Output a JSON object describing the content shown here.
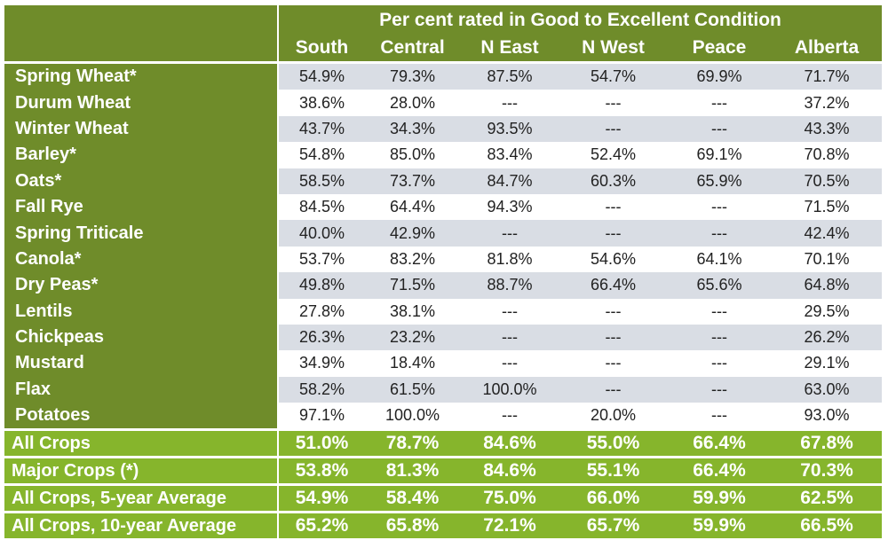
{
  "table": {
    "title": "Per cent rated in Good to Excellent Condition",
    "columns": [
      "South",
      "Central",
      "N East",
      "N West",
      "Peace",
      "Alberta"
    ],
    "rows": [
      {
        "crop": "Spring Wheat*",
        "values": [
          "54.9%",
          "79.3%",
          "87.5%",
          "54.7%",
          "69.9%",
          "71.7%"
        ]
      },
      {
        "crop": "Durum Wheat",
        "values": [
          "38.6%",
          "28.0%",
          "---",
          "---",
          "---",
          "37.2%"
        ]
      },
      {
        "crop": "Winter Wheat",
        "values": [
          "43.7%",
          "34.3%",
          "93.5%",
          "---",
          "---",
          "43.3%"
        ]
      },
      {
        "crop": "Barley*",
        "values": [
          "54.8%",
          "85.0%",
          "83.4%",
          "52.4%",
          "69.1%",
          "70.8%"
        ]
      },
      {
        "crop": "Oats*",
        "values": [
          "58.5%",
          "73.7%",
          "84.7%",
          "60.3%",
          "65.9%",
          "70.5%"
        ]
      },
      {
        "crop": "Fall Rye",
        "values": [
          "84.5%",
          "64.4%",
          "94.3%",
          "---",
          "---",
          "71.5%"
        ]
      },
      {
        "crop": "Spring Triticale",
        "values": [
          "40.0%",
          "42.9%",
          "---",
          "---",
          "---",
          "42.4%"
        ]
      },
      {
        "crop": "Canola*",
        "values": [
          "53.7%",
          "83.2%",
          "81.8%",
          "54.6%",
          "64.1%",
          "70.1%"
        ]
      },
      {
        "crop": "Dry Peas*",
        "values": [
          "49.8%",
          "71.5%",
          "88.7%",
          "66.4%",
          "65.6%",
          "64.8%"
        ]
      },
      {
        "crop": "Lentils",
        "values": [
          "27.8%",
          "38.1%",
          "---",
          "---",
          "---",
          "29.5%"
        ]
      },
      {
        "crop": "Chickpeas",
        "values": [
          "26.3%",
          "23.2%",
          "---",
          "---",
          "---",
          "26.2%"
        ]
      },
      {
        "crop": "Mustard",
        "values": [
          "34.9%",
          "18.4%",
          "---",
          "---",
          "---",
          "29.1%"
        ]
      },
      {
        "crop": "Flax",
        "values": [
          "58.2%",
          "61.5%",
          "100.0%",
          "---",
          "---",
          "63.0%"
        ]
      },
      {
        "crop": "Potatoes",
        "values": [
          "97.1%",
          "100.0%",
          "---",
          "20.0%",
          "---",
          "93.0%"
        ]
      }
    ],
    "summary": [
      {
        "label": "All Crops",
        "values": [
          "51.0%",
          "78.7%",
          "84.6%",
          "55.0%",
          "66.4%",
          "67.8%"
        ]
      },
      {
        "label": "Major Crops (*)",
        "values": [
          "53.8%",
          "81.3%",
          "84.6%",
          "55.1%",
          "66.4%",
          "70.3%"
        ]
      },
      {
        "label": "All Crops, 5-year Average",
        "values": [
          "54.9%",
          "58.4%",
          "75.0%",
          "66.0%",
          "59.9%",
          "62.5%"
        ]
      },
      {
        "label": "All Crops, 10-year Average",
        "values": [
          "65.2%",
          "65.8%",
          "72.1%",
          "65.7%",
          "59.9%",
          "66.5%"
        ]
      }
    ],
    "colors": {
      "header_green": "#6f8c2a",
      "summary_green": "#86b52c",
      "row_shade": "#d9dde4"
    }
  }
}
